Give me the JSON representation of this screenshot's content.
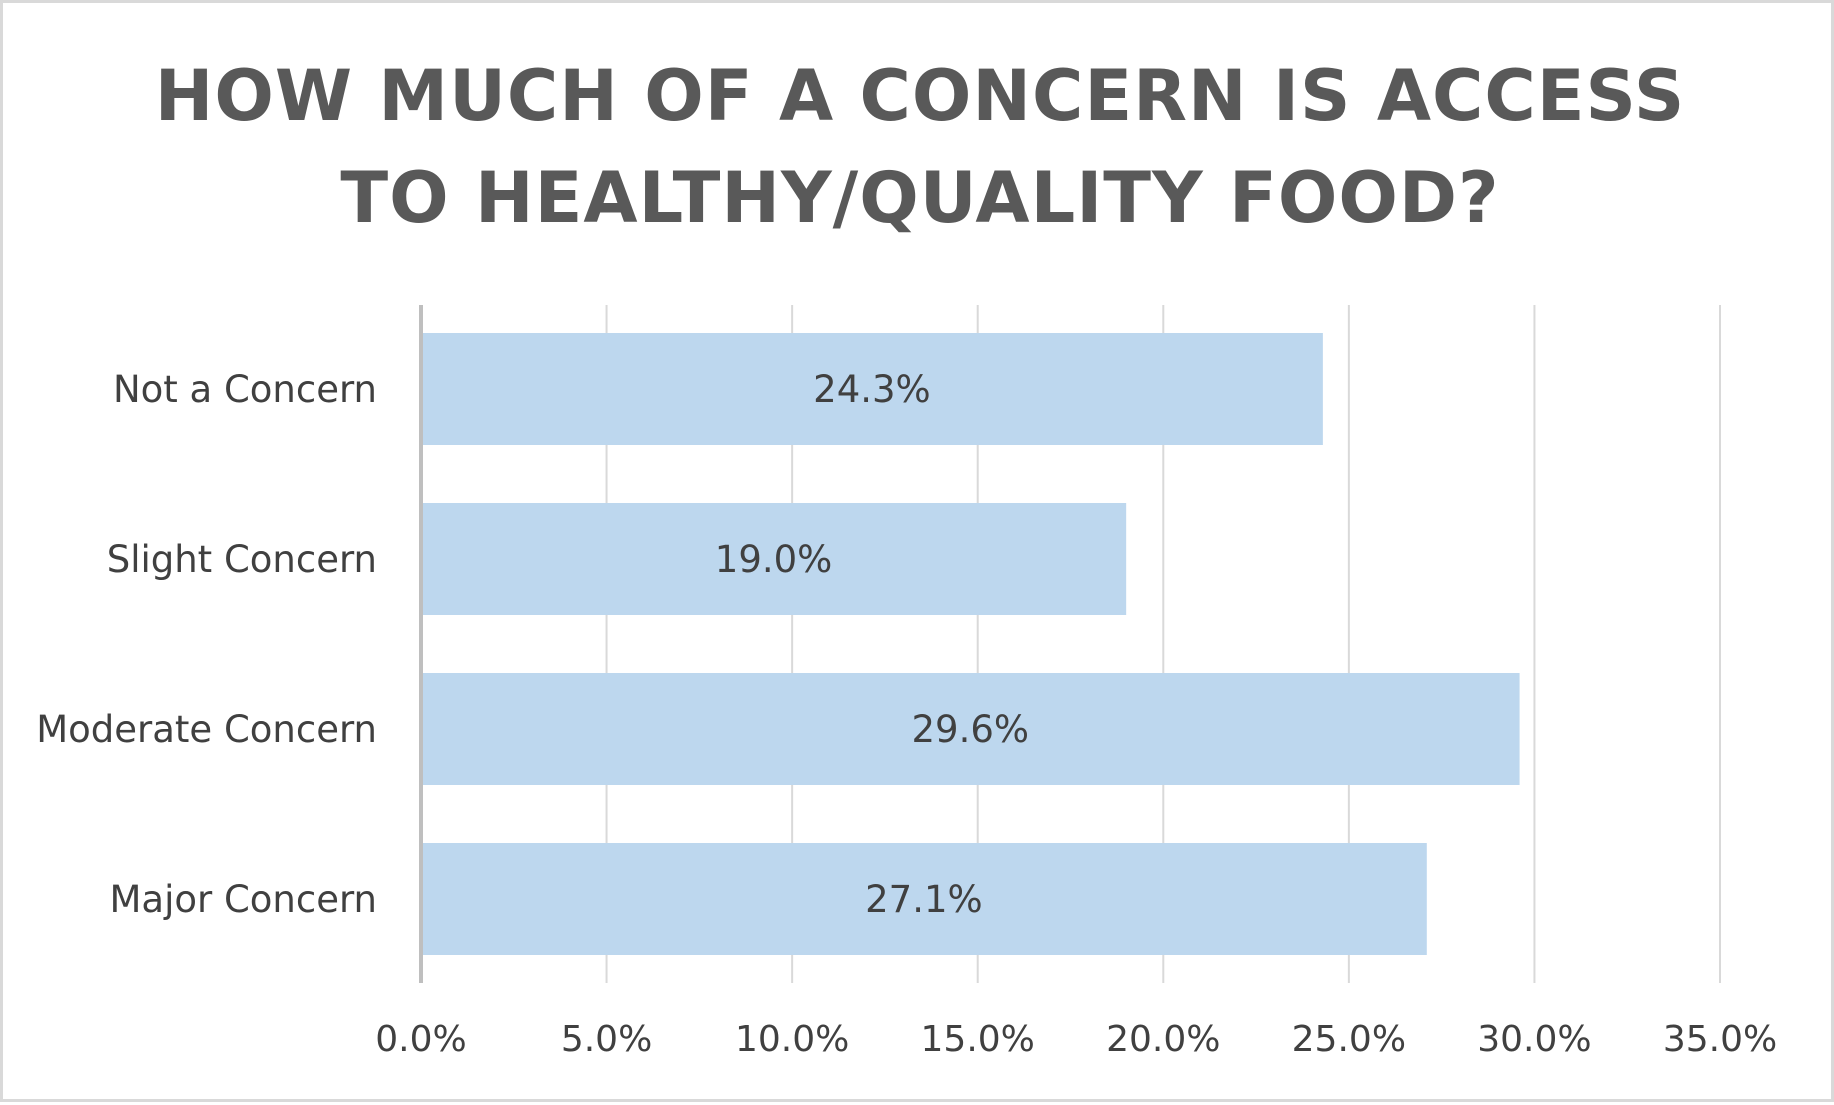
{
  "chart_data": {
    "type": "bar",
    "orientation": "horizontal",
    "title_lines": [
      "HOW MUCH OF A CONCERN IS ACCESS",
      "TO HEALTHY/QUALITY FOOD?"
    ],
    "categories": [
      "Not a Concern",
      "Slight Concern",
      "Moderate Concern",
      "Major Concern"
    ],
    "values": [
      24.3,
      19.0,
      29.6,
      27.1
    ],
    "data_labels": [
      "24.3%",
      "19.0%",
      "29.6%",
      "27.1%"
    ],
    "x_ticks": [
      0,
      5,
      10,
      15,
      20,
      25,
      30,
      35
    ],
    "x_tick_labels": [
      "0.0%",
      "5.0%",
      "10.0%",
      "15.0%",
      "20.0%",
      "25.0%",
      "30.0%",
      "35.0%"
    ],
    "xlim": [
      0,
      35
    ],
    "xlabel": "",
    "ylabel": "",
    "grid": "vertical",
    "legend": "none",
    "colors": {
      "bar": "#bdd7ee",
      "grid": "#d9d9d9",
      "axis": "#bfbfbf",
      "text": "#404040",
      "title": "#595959",
      "border": "#d9d9d9"
    }
  }
}
